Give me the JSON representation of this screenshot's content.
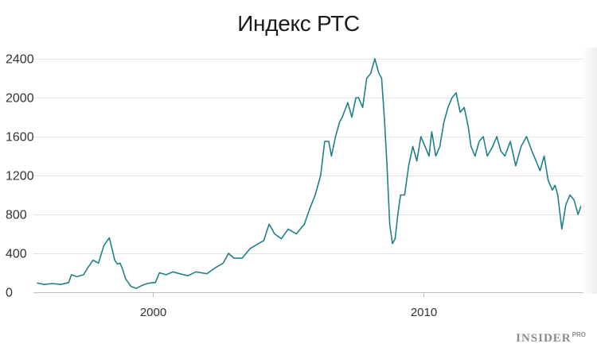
{
  "chart_data": {
    "type": "line",
    "title": "Индекс РТС",
    "xlabel": "",
    "ylabel": "",
    "x_range": [
      1995.6,
      2015.9
    ],
    "ylim": [
      0,
      2400
    ],
    "y_ticks": [
      0,
      400,
      800,
      1200,
      1600,
      2000,
      2400
    ],
    "y_tick_labels": [
      "0",
      "400",
      "800",
      "1200",
      "1600",
      "2000",
      "2400"
    ],
    "x_ticks": [
      2000,
      2010
    ],
    "x_tick_labels": [
      "2000",
      "2010"
    ],
    "grid": "horizontal",
    "color": "#1e8188",
    "series": [
      {
        "x": [
          1995.75,
          1996.0,
          1996.3,
          1996.6,
          1996.9,
          1997.0,
          1997.2,
          1997.45,
          1997.6,
          1997.8,
          1998.0,
          1998.2,
          1998.4,
          1998.5,
          1998.6,
          1998.7,
          1998.8,
          1998.9,
          1999.0,
          1999.2,
          1999.4,
          1999.6,
          1999.8,
          2000.0,
          2000.1,
          2000.25,
          2000.5,
          2000.75,
          2001.0,
          2001.3,
          2001.6,
          2002.0,
          2002.3,
          2002.6,
          2002.8,
          2003.0,
          2003.3,
          2003.6,
          2003.9,
          2004.1,
          2004.3,
          2004.5,
          2004.75,
          2005.0,
          2005.3,
          2005.6,
          2005.8,
          2006.0,
          2006.2,
          2006.35,
          2006.5,
          2006.6,
          2006.75,
          2006.9,
          2007.0,
          2007.2,
          2007.35,
          2007.5,
          2007.6,
          2007.75,
          2007.9,
          2008.05,
          2008.2,
          2008.35,
          2008.45,
          2008.55,
          2008.65,
          2008.75,
          2008.85,
          2008.95,
          2009.05,
          2009.15,
          2009.3,
          2009.45,
          2009.6,
          2009.75,
          2009.9,
          2010.05,
          2010.2,
          2010.3,
          2010.45,
          2010.6,
          2010.75,
          2010.9,
          2011.05,
          2011.2,
          2011.35,
          2011.5,
          2011.65,
          2011.75,
          2011.9,
          2012.05,
          2012.2,
          2012.35,
          2012.55,
          2012.7,
          2012.85,
          2013.0,
          2013.2,
          2013.4,
          2013.6,
          2013.8,
          2014.0,
          2014.15,
          2014.3,
          2014.45,
          2014.6,
          2014.75,
          2014.85,
          2014.95,
          2015.1,
          2015.25,
          2015.4,
          2015.55,
          2015.7,
          2015.8
        ],
        "y": [
          95,
          80,
          90,
          80,
          100,
          180,
          160,
          180,
          250,
          330,
          300,
          480,
          560,
          450,
          330,
          290,
          300,
          230,
          140,
          60,
          40,
          70,
          90,
          100,
          100,
          200,
          180,
          210,
          190,
          170,
          210,
          190,
          250,
          300,
          400,
          350,
          350,
          450,
          500,
          530,
          700,
          600,
          550,
          650,
          600,
          700,
          860,
          1000,
          1200,
          1550,
          1550,
          1400,
          1600,
          1750,
          1800,
          1950,
          1800,
          2000,
          2000,
          1900,
          2200,
          2250,
          2400,
          2250,
          2200,
          1800,
          1300,
          700,
          500,
          550,
          800,
          1000,
          1000,
          1300,
          1500,
          1350,
          1600,
          1500,
          1400,
          1650,
          1400,
          1500,
          1750,
          1900,
          2000,
          2050,
          1850,
          1900,
          1700,
          1500,
          1400,
          1550,
          1600,
          1400,
          1500,
          1600,
          1450,
          1400,
          1550,
          1300,
          1500,
          1600,
          1450,
          1350,
          1250,
          1400,
          1150,
          1050,
          1100,
          1000,
          650,
          900,
          1000,
          950,
          800,
          880
        ]
      }
    ]
  },
  "watermark": {
    "main": "INSIDER",
    "sup": "PRO"
  }
}
